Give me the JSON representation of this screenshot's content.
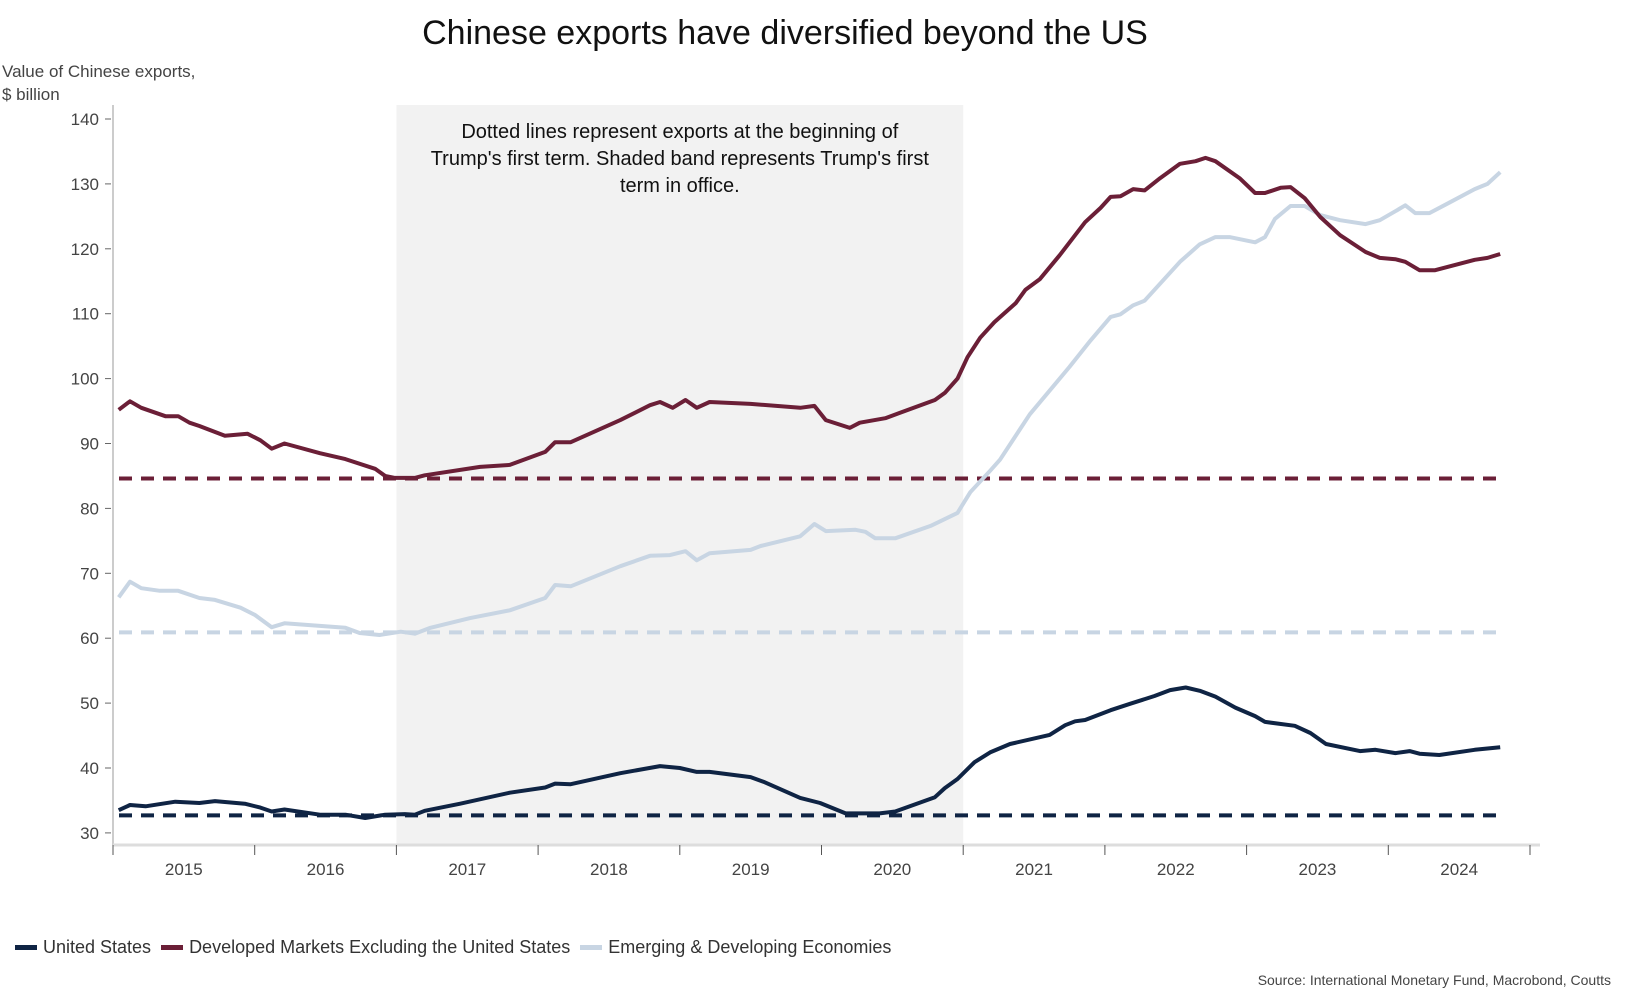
{
  "chart_data": {
    "type": "line",
    "title": "Chinese exports have diversified beyond the US",
    "ylabel": "Value of Chinese exports, $ billion",
    "ylabel_lines": [
      "Value of Chinese exports,",
      "$ billion"
    ],
    "xlabel": "",
    "ylim": [
      30,
      140
    ],
    "yticks": [
      30,
      40,
      50,
      60,
      70,
      80,
      90,
      100,
      110,
      120,
      130,
      140
    ],
    "xlim": [
      2015,
      2025
    ],
    "xticks": [
      "2015",
      "2016",
      "2017",
      "2018",
      "2019",
      "2020",
      "2021",
      "2022",
      "2023",
      "2024"
    ],
    "grid": false,
    "legend_position": "bottom-left",
    "shaded_band": {
      "x": [
        2017.0,
        2021.0
      ],
      "color": "#f2f2f2"
    },
    "annotation": [
      "Dotted lines represent exports at the beginning of",
      "Trump's first term. Shaded band represents Trump's first",
      "term in office."
    ],
    "source": "Source: International Monetary Fund, Macrobond, Coutts",
    "series": [
      {
        "name": "United States",
        "color": "#0f2444",
        "reference_level": 32.7,
        "points": [
          [
            2015.04,
            33.5
          ],
          [
            2015.12,
            34.3
          ],
          [
            2015.23,
            34.1
          ],
          [
            2015.44,
            34.8
          ],
          [
            2015.61,
            34.6
          ],
          [
            2015.72,
            34.9
          ],
          [
            2015.93,
            34.5
          ],
          [
            2016.04,
            33.9
          ],
          [
            2016.12,
            33.3
          ],
          [
            2016.21,
            33.6
          ],
          [
            2016.46,
            32.8
          ],
          [
            2016.64,
            32.8
          ],
          [
            2016.78,
            32.3
          ],
          [
            2016.92,
            32.8
          ],
          [
            2017.06,
            32.9
          ],
          [
            2017.13,
            32.8
          ],
          [
            2017.2,
            33.4
          ],
          [
            2017.45,
            34.5
          ],
          [
            2017.8,
            36.2
          ],
          [
            2018.05,
            37.0
          ],
          [
            2018.12,
            37.6
          ],
          [
            2018.23,
            37.5
          ],
          [
            2018.58,
            39.2
          ],
          [
            2018.86,
            40.3
          ],
          [
            2019.0,
            40.0
          ],
          [
            2019.12,
            39.4
          ],
          [
            2019.21,
            39.4
          ],
          [
            2019.5,
            38.6
          ],
          [
            2019.6,
            37.8
          ],
          [
            2019.85,
            35.4
          ],
          [
            2019.99,
            34.6
          ],
          [
            2020.17,
            33.0
          ],
          [
            2020.41,
            33.0
          ],
          [
            2020.52,
            33.3
          ],
          [
            2020.8,
            35.5
          ],
          [
            2020.87,
            36.9
          ],
          [
            2020.96,
            38.3
          ],
          [
            2021.08,
            40.9
          ],
          [
            2021.19,
            42.4
          ],
          [
            2021.33,
            43.7
          ],
          [
            2021.61,
            45.1
          ],
          [
            2021.72,
            46.6
          ],
          [
            2021.79,
            47.2
          ],
          [
            2021.86,
            47.4
          ],
          [
            2022.04,
            48.9
          ],
          [
            2022.18,
            49.9
          ],
          [
            2022.35,
            51.1
          ],
          [
            2022.46,
            52.0
          ],
          [
            2022.57,
            52.4
          ],
          [
            2022.67,
            51.9
          ],
          [
            2022.78,
            51.0
          ],
          [
            2022.92,
            49.3
          ],
          [
            2023.06,
            48.0
          ],
          [
            2023.13,
            47.1
          ],
          [
            2023.34,
            46.5
          ],
          [
            2023.45,
            45.4
          ],
          [
            2023.56,
            43.7
          ],
          [
            2023.8,
            42.6
          ],
          [
            2023.91,
            42.8
          ],
          [
            2024.05,
            42.3
          ],
          [
            2024.15,
            42.6
          ],
          [
            2024.22,
            42.2
          ],
          [
            2024.36,
            42.0
          ],
          [
            2024.61,
            42.8
          ],
          [
            2024.79,
            43.2
          ]
        ]
      },
      {
        "name": "Developed Markets Excluding the United States",
        "color": "#6b1f37",
        "reference_level": 84.6,
        "points": [
          [
            2015.04,
            95.2
          ],
          [
            2015.12,
            96.5
          ],
          [
            2015.2,
            95.5
          ],
          [
            2015.37,
            94.2
          ],
          [
            2015.46,
            94.2
          ],
          [
            2015.54,
            93.2
          ],
          [
            2015.61,
            92.7
          ],
          [
            2015.79,
            91.2
          ],
          [
            2015.95,
            91.5
          ],
          [
            2016.04,
            90.5
          ],
          [
            2016.12,
            89.2
          ],
          [
            2016.21,
            90.0
          ],
          [
            2016.46,
            88.5
          ],
          [
            2016.64,
            87.6
          ],
          [
            2016.85,
            86.1
          ],
          [
            2016.92,
            85.0
          ],
          [
            2016.99,
            84.7
          ],
          [
            2017.13,
            84.7
          ],
          [
            2017.2,
            85.1
          ],
          [
            2017.59,
            86.4
          ],
          [
            2017.8,
            86.7
          ],
          [
            2018.05,
            88.7
          ],
          [
            2018.12,
            90.2
          ],
          [
            2018.23,
            90.2
          ],
          [
            2018.58,
            93.6
          ],
          [
            2018.79,
            95.9
          ],
          [
            2018.86,
            96.4
          ],
          [
            2018.95,
            95.5
          ],
          [
            2019.04,
            96.7
          ],
          [
            2019.12,
            95.5
          ],
          [
            2019.21,
            96.4
          ],
          [
            2019.5,
            96.1
          ],
          [
            2019.85,
            95.5
          ],
          [
            2019.95,
            95.8
          ],
          [
            2020.03,
            93.6
          ],
          [
            2020.2,
            92.4
          ],
          [
            2020.27,
            93.2
          ],
          [
            2020.45,
            93.9
          ],
          [
            2020.55,
            94.7
          ],
          [
            2020.8,
            96.7
          ],
          [
            2020.87,
            97.8
          ],
          [
            2020.96,
            100.0
          ],
          [
            2021.03,
            103.3
          ],
          [
            2021.12,
            106.3
          ],
          [
            2021.22,
            108.7
          ],
          [
            2021.37,
            111.6
          ],
          [
            2021.44,
            113.7
          ],
          [
            2021.54,
            115.3
          ],
          [
            2021.68,
            119.0
          ],
          [
            2021.86,
            124.1
          ],
          [
            2021.97,
            126.3
          ],
          [
            2022.04,
            128.0
          ],
          [
            2022.11,
            128.1
          ],
          [
            2022.2,
            129.2
          ],
          [
            2022.28,
            129.0
          ],
          [
            2022.39,
            130.9
          ],
          [
            2022.53,
            133.1
          ],
          [
            2022.64,
            133.5
          ],
          [
            2022.71,
            134.0
          ],
          [
            2022.78,
            133.5
          ],
          [
            2022.95,
            130.9
          ],
          [
            2023.06,
            128.6
          ],
          [
            2023.13,
            128.6
          ],
          [
            2023.24,
            129.4
          ],
          [
            2023.31,
            129.5
          ],
          [
            2023.41,
            127.8
          ],
          [
            2023.52,
            124.9
          ],
          [
            2023.66,
            122.1
          ],
          [
            2023.84,
            119.5
          ],
          [
            2023.94,
            118.6
          ],
          [
            2024.05,
            118.4
          ],
          [
            2024.12,
            118.0
          ],
          [
            2024.22,
            116.7
          ],
          [
            2024.33,
            116.7
          ],
          [
            2024.61,
            118.3
          ],
          [
            2024.7,
            118.6
          ],
          [
            2024.79,
            119.2
          ]
        ]
      },
      {
        "name": "Emerging & Developing Economies",
        "color": "#c8d5e3",
        "reference_level": 60.9,
        "points": [
          [
            2015.04,
            66.3
          ],
          [
            2015.12,
            68.7
          ],
          [
            2015.2,
            67.7
          ],
          [
            2015.33,
            67.3
          ],
          [
            2015.46,
            67.3
          ],
          [
            2015.61,
            66.2
          ],
          [
            2015.72,
            65.9
          ],
          [
            2015.9,
            64.7
          ],
          [
            2016.0,
            63.6
          ],
          [
            2016.12,
            61.7
          ],
          [
            2016.21,
            62.3
          ],
          [
            2016.46,
            61.9
          ],
          [
            2016.64,
            61.6
          ],
          [
            2016.74,
            60.8
          ],
          [
            2016.88,
            60.5
          ],
          [
            2017.03,
            61.0
          ],
          [
            2017.13,
            60.7
          ],
          [
            2017.24,
            61.6
          ],
          [
            2017.52,
            63.1
          ],
          [
            2017.8,
            64.3
          ],
          [
            2018.05,
            66.2
          ],
          [
            2018.12,
            68.2
          ],
          [
            2018.23,
            68.0
          ],
          [
            2018.58,
            71.1
          ],
          [
            2018.79,
            72.7
          ],
          [
            2018.93,
            72.8
          ],
          [
            2019.04,
            73.4
          ],
          [
            2019.12,
            72.0
          ],
          [
            2019.21,
            73.1
          ],
          [
            2019.5,
            73.6
          ],
          [
            2019.57,
            74.2
          ],
          [
            2019.85,
            75.7
          ],
          [
            2019.95,
            77.6
          ],
          [
            2020.03,
            76.5
          ],
          [
            2020.24,
            76.7
          ],
          [
            2020.31,
            76.4
          ],
          [
            2020.38,
            75.4
          ],
          [
            2020.52,
            75.4
          ],
          [
            2020.77,
            77.3
          ],
          [
            2020.96,
            79.3
          ],
          [
            2021.05,
            82.5
          ],
          [
            2021.19,
            85.8
          ],
          [
            2021.26,
            87.5
          ],
          [
            2021.47,
            94.5
          ],
          [
            2021.75,
            101.8
          ],
          [
            2021.9,
            105.9
          ],
          [
            2022.04,
            109.5
          ],
          [
            2022.11,
            109.9
          ],
          [
            2022.2,
            111.3
          ],
          [
            2022.28,
            112.0
          ],
          [
            2022.53,
            118.0
          ],
          [
            2022.67,
            120.7
          ],
          [
            2022.78,
            121.8
          ],
          [
            2022.88,
            121.8
          ],
          [
            2023.06,
            121.0
          ],
          [
            2023.13,
            121.8
          ],
          [
            2023.2,
            124.6
          ],
          [
            2023.31,
            126.6
          ],
          [
            2023.41,
            126.6
          ],
          [
            2023.52,
            125.2
          ],
          [
            2023.66,
            124.4
          ],
          [
            2023.84,
            123.8
          ],
          [
            2023.94,
            124.4
          ],
          [
            2024.05,
            125.8
          ],
          [
            2024.12,
            126.7
          ],
          [
            2024.19,
            125.5
          ],
          [
            2024.29,
            125.5
          ],
          [
            2024.43,
            127.1
          ],
          [
            2024.61,
            129.2
          ],
          [
            2024.7,
            130.0
          ],
          [
            2024.79,
            131.8
          ]
        ]
      }
    ]
  }
}
